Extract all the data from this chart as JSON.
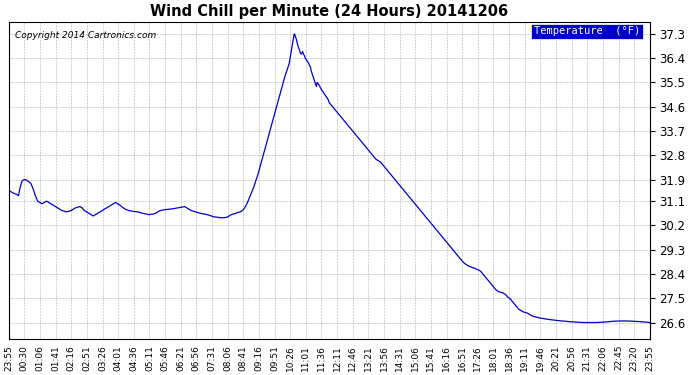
{
  "title": "Wind Chill per Minute (24 Hours) 20141206",
  "copyright_text": "Copyright 2014 Cartronics.com",
  "legend_label": "Temperature  (°F)",
  "line_color": "#0000cc",
  "background_color": "#ffffff",
  "grid_color": "#999999",
  "legend_bg": "#0000cc",
  "legend_text_color": "#ffffff",
  "y_ticks": [
    26.6,
    27.5,
    28.4,
    29.3,
    30.2,
    31.1,
    31.9,
    32.8,
    33.7,
    34.6,
    35.5,
    36.4,
    37.3
  ],
  "ylim": [
    26.0,
    37.75
  ],
  "x_tick_labels": [
    "23:55",
    "00:30",
    "01:06",
    "01:41",
    "02:16",
    "02:51",
    "03:26",
    "04:01",
    "04:36",
    "05:11",
    "05:46",
    "06:21",
    "06:56",
    "07:31",
    "08:06",
    "08:41",
    "09:16",
    "09:51",
    "10:26",
    "11:01",
    "11:36",
    "12:11",
    "12:46",
    "13:21",
    "13:56",
    "14:31",
    "15:06",
    "15:41",
    "16:16",
    "16:51",
    "17:26",
    "18:01",
    "18:36",
    "19:11",
    "19:46",
    "20:21",
    "20:56",
    "21:31",
    "22:06",
    "22:45",
    "23:20",
    "23:55"
  ],
  "data_points": [
    [
      0,
      31.5
    ],
    [
      5,
      31.45
    ],
    [
      10,
      31.4
    ],
    [
      18,
      31.35
    ],
    [
      22,
      31.3
    ],
    [
      25,
      31.55
    ],
    [
      30,
      31.85
    ],
    [
      35,
      31.9
    ],
    [
      40,
      31.88
    ],
    [
      45,
      31.82
    ],
    [
      50,
      31.75
    ],
    [
      55,
      31.55
    ],
    [
      60,
      31.3
    ],
    [
      65,
      31.1
    ],
    [
      70,
      31.05
    ],
    [
      75,
      31.0
    ],
    [
      80,
      31.05
    ],
    [
      85,
      31.1
    ],
    [
      90,
      31.05
    ],
    [
      95,
      31.0
    ],
    [
      100,
      30.95
    ],
    [
      110,
      30.85
    ],
    [
      120,
      30.75
    ],
    [
      130,
      30.7
    ],
    [
      140,
      30.75
    ],
    [
      150,
      30.85
    ],
    [
      160,
      30.9
    ],
    [
      165,
      30.85
    ],
    [
      170,
      30.75
    ],
    [
      175,
      30.7
    ],
    [
      180,
      30.65
    ],
    [
      185,
      30.6
    ],
    [
      190,
      30.55
    ],
    [
      195,
      30.6
    ],
    [
      200,
      30.65
    ],
    [
      205,
      30.7
    ],
    [
      210,
      30.75
    ],
    [
      215,
      30.8
    ],
    [
      220,
      30.85
    ],
    [
      225,
      30.9
    ],
    [
      230,
      30.95
    ],
    [
      235,
      31.0
    ],
    [
      240,
      31.05
    ],
    [
      245,
      31.0
    ],
    [
      250,
      30.95
    ],
    [
      255,
      30.88
    ],
    [
      260,
      30.82
    ],
    [
      265,
      30.78
    ],
    [
      270,
      30.75
    ],
    [
      280,
      30.72
    ],
    [
      290,
      30.7
    ],
    [
      295,
      30.68
    ],
    [
      300,
      30.65
    ],
    [
      310,
      30.62
    ],
    [
      315,
      30.6
    ],
    [
      325,
      30.62
    ],
    [
      330,
      30.65
    ],
    [
      335,
      30.7
    ],
    [
      340,
      30.75
    ],
    [
      350,
      30.78
    ],
    [
      360,
      30.8
    ],
    [
      370,
      30.82
    ],
    [
      380,
      30.85
    ],
    [
      390,
      30.88
    ],
    [
      395,
      30.9
    ],
    [
      400,
      30.85
    ],
    [
      410,
      30.75
    ],
    [
      420,
      30.7
    ],
    [
      430,
      30.65
    ],
    [
      440,
      30.62
    ],
    [
      445,
      30.6
    ],
    [
      450,
      30.58
    ],
    [
      455,
      30.55
    ],
    [
      460,
      30.52
    ],
    [
      470,
      30.5
    ],
    [
      480,
      30.48
    ],
    [
      490,
      30.5
    ],
    [
      495,
      30.55
    ],
    [
      500,
      30.6
    ],
    [
      505,
      30.62
    ],
    [
      510,
      30.65
    ],
    [
      515,
      30.68
    ],
    [
      520,
      30.7
    ],
    [
      525,
      30.75
    ],
    [
      530,
      30.85
    ],
    [
      535,
      31.0
    ],
    [
      540,
      31.2
    ],
    [
      545,
      31.4
    ],
    [
      550,
      31.6
    ],
    [
      555,
      31.85
    ],
    [
      560,
      32.1
    ],
    [
      565,
      32.4
    ],
    [
      570,
      32.7
    ],
    [
      575,
      33.0
    ],
    [
      580,
      33.3
    ],
    [
      585,
      33.6
    ],
    [
      590,
      33.9
    ],
    [
      595,
      34.2
    ],
    [
      600,
      34.5
    ],
    [
      605,
      34.8
    ],
    [
      610,
      35.1
    ],
    [
      615,
      35.4
    ],
    [
      620,
      35.7
    ],
    [
      625,
      35.95
    ],
    [
      630,
      36.2
    ],
    [
      633,
      36.5
    ],
    [
      636,
      36.8
    ],
    [
      638,
      37.0
    ],
    [
      640,
      37.2
    ],
    [
      641,
      37.28
    ],
    [
      642,
      37.3
    ],
    [
      643,
      37.25
    ],
    [
      645,
      37.15
    ],
    [
      646,
      37.1
    ],
    [
      647,
      37.05
    ],
    [
      648,
      36.95
    ],
    [
      650,
      36.85
    ],
    [
      652,
      36.75
    ],
    [
      653,
      36.7
    ],
    [
      654,
      36.65
    ],
    [
      655,
      36.6
    ],
    [
      657,
      36.55
    ],
    [
      659,
      36.6
    ],
    [
      660,
      36.65
    ],
    [
      661,
      36.6
    ],
    [
      662,
      36.55
    ],
    [
      664,
      36.5
    ],
    [
      665,
      36.45
    ],
    [
      666,
      36.4
    ],
    [
      668,
      36.35
    ],
    [
      670,
      36.3
    ],
    [
      672,
      36.25
    ],
    [
      674,
      36.2
    ],
    [
      675,
      36.15
    ],
    [
      677,
      36.1
    ],
    [
      678,
      36.05
    ],
    [
      679,
      35.95
    ],
    [
      681,
      35.85
    ],
    [
      683,
      35.75
    ],
    [
      685,
      35.65
    ],
    [
      687,
      35.55
    ],
    [
      689,
      35.45
    ],
    [
      691,
      35.35
    ],
    [
      693,
      35.5
    ],
    [
      695,
      35.45
    ],
    [
      697,
      35.4
    ],
    [
      699,
      35.35
    ],
    [
      700,
      35.3
    ],
    [
      702,
      35.25
    ],
    [
      704,
      35.2
    ],
    [
      706,
      35.15
    ],
    [
      708,
      35.1
    ],
    [
      710,
      35.05
    ],
    [
      712,
      35.0
    ],
    [
      714,
      34.95
    ],
    [
      716,
      34.9
    ],
    [
      718,
      34.85
    ],
    [
      720,
      34.75
    ],
    [
      725,
      34.65
    ],
    [
      730,
      34.55
    ],
    [
      735,
      34.45
    ],
    [
      740,
      34.35
    ],
    [
      745,
      34.25
    ],
    [
      750,
      34.15
    ],
    [
      755,
      34.05
    ],
    [
      760,
      33.95
    ],
    [
      765,
      33.85
    ],
    [
      770,
      33.75
    ],
    [
      775,
      33.65
    ],
    [
      780,
      33.55
    ],
    [
      785,
      33.45
    ],
    [
      790,
      33.35
    ],
    [
      795,
      33.25
    ],
    [
      800,
      33.15
    ],
    [
      805,
      33.05
    ],
    [
      810,
      32.95
    ],
    [
      815,
      32.85
    ],
    [
      820,
      32.75
    ],
    [
      825,
      32.65
    ],
    [
      830,
      32.6
    ],
    [
      835,
      32.55
    ],
    [
      840,
      32.45
    ],
    [
      845,
      32.35
    ],
    [
      850,
      32.25
    ],
    [
      855,
      32.15
    ],
    [
      860,
      32.05
    ],
    [
      865,
      31.95
    ],
    [
      870,
      31.85
    ],
    [
      875,
      31.75
    ],
    [
      880,
      31.65
    ],
    [
      885,
      31.55
    ],
    [
      890,
      31.45
    ],
    [
      895,
      31.35
    ],
    [
      900,
      31.25
    ],
    [
      905,
      31.15
    ],
    [
      910,
      31.05
    ],
    [
      915,
      30.95
    ],
    [
      920,
      30.85
    ],
    [
      925,
      30.75
    ],
    [
      930,
      30.65
    ],
    [
      935,
      30.55
    ],
    [
      940,
      30.45
    ],
    [
      945,
      30.35
    ],
    [
      950,
      30.25
    ],
    [
      955,
      30.15
    ],
    [
      960,
      30.05
    ],
    [
      965,
      29.95
    ],
    [
      970,
      29.85
    ],
    [
      975,
      29.75
    ],
    [
      980,
      29.65
    ],
    [
      985,
      29.55
    ],
    [
      990,
      29.45
    ],
    [
      995,
      29.35
    ],
    [
      1000,
      29.25
    ],
    [
      1005,
      29.15
    ],
    [
      1010,
      29.05
    ],
    [
      1015,
      28.95
    ],
    [
      1020,
      28.85
    ],
    [
      1025,
      28.78
    ],
    [
      1030,
      28.72
    ],
    [
      1035,
      28.68
    ],
    [
      1040,
      28.65
    ],
    [
      1045,
      28.62
    ],
    [
      1048,
      28.6
    ],
    [
      1050,
      28.58
    ],
    [
      1055,
      28.55
    ],
    [
      1060,
      28.5
    ],
    [
      1065,
      28.4
    ],
    [
      1070,
      28.3
    ],
    [
      1075,
      28.2
    ],
    [
      1080,
      28.1
    ],
    [
      1085,
      28.0
    ],
    [
      1090,
      27.9
    ],
    [
      1095,
      27.8
    ],
    [
      1100,
      27.75
    ],
    [
      1105,
      27.72
    ],
    [
      1110,
      27.7
    ],
    [
      1115,
      27.65
    ],
    [
      1118,
      27.6
    ],
    [
      1120,
      27.55
    ],
    [
      1125,
      27.5
    ],
    [
      1128,
      27.45
    ],
    [
      1130,
      27.4
    ],
    [
      1133,
      27.35
    ],
    [
      1135,
      27.3
    ],
    [
      1138,
      27.25
    ],
    [
      1140,
      27.2
    ],
    [
      1143,
      27.15
    ],
    [
      1145,
      27.1
    ],
    [
      1150,
      27.05
    ],
    [
      1155,
      27.0
    ],
    [
      1160,
      26.97
    ],
    [
      1165,
      26.95
    ],
    [
      1170,
      26.9
    ],
    [
      1175,
      26.85
    ],
    [
      1180,
      26.82
    ],
    [
      1185,
      26.8
    ],
    [
      1190,
      26.78
    ],
    [
      1195,
      26.76
    ],
    [
      1200,
      26.75
    ],
    [
      1210,
      26.72
    ],
    [
      1220,
      26.7
    ],
    [
      1230,
      26.68
    ],
    [
      1240,
      26.66
    ],
    [
      1250,
      26.65
    ],
    [
      1260,
      26.63
    ],
    [
      1270,
      26.62
    ],
    [
      1280,
      26.61
    ],
    [
      1290,
      26.6
    ],
    [
      1300,
      26.6
    ],
    [
      1320,
      26.6
    ],
    [
      1340,
      26.62
    ],
    [
      1360,
      26.65
    ],
    [
      1380,
      26.66
    ],
    [
      1400,
      26.65
    ],
    [
      1420,
      26.63
    ],
    [
      1440,
      26.6
    ]
  ]
}
